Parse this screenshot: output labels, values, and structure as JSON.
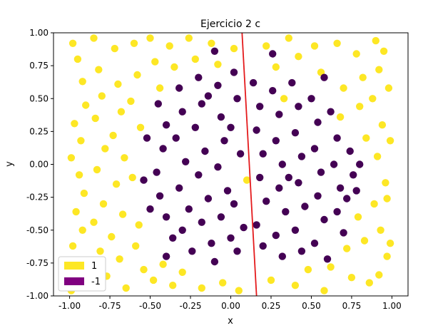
{
  "chart_data": {
    "type": "scatter",
    "title": "Ejercicio 2 c",
    "xlabel": "x",
    "ylabel": "y",
    "xlim": [
      -1.1,
      1.1
    ],
    "ylim": [
      -1.0,
      1.0
    ],
    "xticks": [
      "-1.00",
      "-0.75",
      "-0.50",
      "-0.25",
      "0.00",
      "0.25",
      "0.50",
      "0.75",
      "1.00"
    ],
    "xtick_values": [
      -1.0,
      -0.75,
      -0.5,
      -0.25,
      0.0,
      0.25,
      0.5,
      0.75,
      1.0
    ],
    "yticks": [
      "-1.00",
      "-0.75",
      "-0.50",
      "-0.25",
      "0.00",
      "0.25",
      "0.50",
      "0.75",
      "1.00"
    ],
    "ytick_values": [
      -1.0,
      -0.75,
      -0.5,
      -0.25,
      0.0,
      0.25,
      0.5,
      0.75,
      1.0
    ],
    "grid": false,
    "legend_position": "lower-left",
    "legend": [
      {
        "label": "1",
        "color": "#fde725"
      },
      {
        "label": "-1",
        "color": "#800080"
      }
    ],
    "series": [
      {
        "name": "1",
        "color": "#fde725",
        "points": [
          [
            -0.98,
            0.92
          ],
          [
            -0.95,
            0.8
          ],
          [
            -0.92,
            0.63
          ],
          [
            -0.9,
            0.45
          ],
          [
            -0.97,
            0.31
          ],
          [
            -0.93,
            0.18
          ],
          [
            -0.99,
            0.05
          ],
          [
            -0.94,
            -0.08
          ],
          [
            -0.91,
            -0.22
          ],
          [
            -0.96,
            -0.36
          ],
          [
            -0.92,
            -0.5
          ],
          [
            -0.98,
            -0.62
          ],
          [
            -0.93,
            -0.78
          ],
          [
            -0.9,
            -0.92
          ],
          [
            -0.85,
            0.96
          ],
          [
            -0.82,
            0.72
          ],
          [
            -0.8,
            0.52
          ],
          [
            -0.84,
            0.35
          ],
          [
            -0.78,
            0.12
          ],
          [
            -0.83,
            -0.04
          ],
          [
            -0.79,
            -0.3
          ],
          [
            -0.85,
            -0.44
          ],
          [
            -0.81,
            -0.66
          ],
          [
            -0.77,
            -0.85
          ],
          [
            -0.72,
            0.88
          ],
          [
            -0.7,
            0.61
          ],
          [
            -0.68,
            0.4
          ],
          [
            -0.73,
            0.22
          ],
          [
            -0.66,
            0.05
          ],
          [
            -0.71,
            -0.15
          ],
          [
            -0.67,
            -0.38
          ],
          [
            -0.74,
            -0.55
          ],
          [
            -0.69,
            -0.72
          ],
          [
            -0.65,
            -0.94
          ],
          [
            -0.6,
            0.92
          ],
          [
            -0.58,
            0.68
          ],
          [
            -0.62,
            0.48
          ],
          [
            -0.56,
            0.28
          ],
          [
            -0.61,
            -0.1
          ],
          [
            -0.57,
            -0.46
          ],
          [
            -0.59,
            -0.62
          ],
          [
            -0.54,
            -0.8
          ],
          [
            -0.5,
            0.96
          ],
          [
            -0.47,
            0.78
          ],
          [
            -0.44,
            0.58
          ],
          [
            -0.48,
            -0.88
          ],
          [
            -0.42,
            -0.76
          ],
          [
            -0.38,
            0.9
          ],
          [
            -0.35,
            0.74
          ],
          [
            -0.36,
            -0.92
          ],
          [
            -0.3,
            -0.82
          ],
          [
            -0.26,
            0.96
          ],
          [
            -0.22,
            0.8
          ],
          [
            -0.18,
            -0.94
          ],
          [
            -0.12,
            0.92
          ],
          [
            -0.08,
            0.76
          ],
          [
            -0.05,
            -0.9
          ],
          [
            0.02,
            0.88
          ],
          [
            0.05,
            -0.96
          ],
          [
            0.1,
            -0.12
          ],
          [
            0.22,
            0.9
          ],
          [
            0.28,
            0.74
          ],
          [
            0.25,
            -0.88
          ],
          [
            0.33,
            0.5
          ],
          [
            0.36,
            0.96
          ],
          [
            0.42,
            0.82
          ],
          [
            0.4,
            -0.92
          ],
          [
            0.48,
            -0.8
          ],
          [
            0.52,
            0.9
          ],
          [
            0.56,
            0.7
          ],
          [
            0.58,
            -0.96
          ],
          [
            0.62,
            -0.78
          ],
          [
            0.66,
            0.92
          ],
          [
            0.7,
            0.58
          ],
          [
            0.68,
            0.36
          ],
          [
            0.72,
            -0.64
          ],
          [
            0.75,
            -0.86
          ],
          [
            0.78,
            0.84
          ],
          [
            0.82,
            0.66
          ],
          [
            0.8,
            0.44
          ],
          [
            0.84,
            0.2
          ],
          [
            0.79,
            -0.4
          ],
          [
            0.83,
            -0.58
          ],
          [
            0.86,
            -0.9
          ],
          [
            0.9,
            0.94
          ],
          [
            0.92,
            0.72
          ],
          [
            0.88,
            0.5
          ],
          [
            0.94,
            0.3
          ],
          [
            0.91,
            0.06
          ],
          [
            0.96,
            -0.14
          ],
          [
            0.89,
            -0.3
          ],
          [
            0.93,
            -0.5
          ],
          [
            0.97,
            -0.7
          ],
          [
            0.92,
            -0.84
          ],
          [
            0.98,
            0.58
          ],
          [
            0.99,
            0.18
          ],
          [
            0.97,
            -0.26
          ],
          [
            0.99,
            -0.6
          ],
          [
            -0.99,
            -0.96
          ],
          [
            0.95,
            0.86
          ]
        ]
      },
      {
        "name": "-1",
        "color": "#440154",
        "points": [
          [
            -0.45,
            0.46
          ],
          [
            -0.4,
            0.3
          ],
          [
            -0.42,
            0.12
          ],
          [
            -0.46,
            -0.06
          ],
          [
            -0.44,
            -0.24
          ],
          [
            -0.4,
            -0.4
          ],
          [
            -0.36,
            -0.56
          ],
          [
            -0.32,
            0.58
          ],
          [
            -0.3,
            0.4
          ],
          [
            -0.34,
            0.2
          ],
          [
            -0.28,
            0.02
          ],
          [
            -0.32,
            -0.18
          ],
          [
            -0.26,
            -0.34
          ],
          [
            -0.3,
            -0.5
          ],
          [
            -0.24,
            -0.66
          ],
          [
            -0.2,
            0.66
          ],
          [
            -0.18,
            0.46
          ],
          [
            -0.22,
            0.28
          ],
          [
            -0.16,
            0.1
          ],
          [
            -0.2,
            -0.08
          ],
          [
            -0.14,
            -0.26
          ],
          [
            -0.18,
            -0.44
          ],
          [
            -0.12,
            -0.6
          ],
          [
            -0.1,
            -0.74
          ],
          [
            -0.08,
            0.6
          ],
          [
            -0.06,
            0.36
          ],
          [
            -0.04,
            0.18
          ],
          [
            -0.08,
            -0.02
          ],
          [
            -0.02,
            -0.2
          ],
          [
            -0.06,
            -0.4
          ],
          [
            0.0,
            -0.56
          ],
          [
            0.02,
            0.7
          ],
          [
            0.04,
            0.5
          ],
          [
            0.0,
            0.28
          ],
          [
            0.06,
            0.08
          ],
          [
            0.02,
            -0.3
          ],
          [
            0.08,
            -0.48
          ],
          [
            0.04,
            -0.66
          ],
          [
            0.14,
            0.62
          ],
          [
            0.18,
            0.44
          ],
          [
            0.16,
            0.26
          ],
          [
            0.2,
            0.08
          ],
          [
            0.18,
            -0.1
          ],
          [
            0.22,
            -0.28
          ],
          [
            0.16,
            -0.46
          ],
          [
            0.2,
            -0.62
          ],
          [
            0.26,
            0.56
          ],
          [
            0.3,
            0.38
          ],
          [
            0.28,
            0.18
          ],
          [
            0.32,
            0.0
          ],
          [
            0.3,
            -0.18
          ],
          [
            0.34,
            -0.36
          ],
          [
            0.28,
            -0.54
          ],
          [
            0.32,
            -0.7
          ],
          [
            0.38,
            0.62
          ],
          [
            0.42,
            0.44
          ],
          [
            0.4,
            0.24
          ],
          [
            0.44,
            0.06
          ],
          [
            0.42,
            -0.14
          ],
          [
            0.46,
            -0.32
          ],
          [
            0.4,
            -0.5
          ],
          [
            0.44,
            -0.66
          ],
          [
            0.5,
            0.5
          ],
          [
            0.54,
            0.32
          ],
          [
            0.52,
            0.12
          ],
          [
            0.56,
            -0.06
          ],
          [
            0.54,
            -0.24
          ],
          [
            0.58,
            -0.42
          ],
          [
            0.52,
            -0.6
          ],
          [
            0.62,
            0.4
          ],
          [
            0.66,
            0.2
          ],
          [
            0.64,
            0.0
          ],
          [
            0.68,
            -0.18
          ],
          [
            0.66,
            -0.36
          ],
          [
            0.7,
            -0.52
          ],
          [
            0.74,
            0.1
          ],
          [
            0.76,
            -0.08
          ],
          [
            0.72,
            -0.26
          ],
          [
            -0.52,
            0.2
          ],
          [
            -0.54,
            -0.12
          ],
          [
            -0.5,
            -0.34
          ],
          [
            0.8,
            0.0
          ],
          [
            0.78,
            -0.2
          ],
          [
            -0.1,
            0.86
          ],
          [
            0.26,
            0.84
          ],
          [
            -0.4,
            -0.7
          ],
          [
            0.58,
            0.66
          ],
          [
            0.6,
            -0.72
          ],
          [
            -0.14,
            0.52
          ],
          [
            0.36,
            -0.1
          ]
        ]
      }
    ],
    "line": {
      "color": "#e41a1c",
      "points": [
        [
          0.07,
          1.0
        ],
        [
          0.16,
          -1.0
        ]
      ]
    }
  }
}
